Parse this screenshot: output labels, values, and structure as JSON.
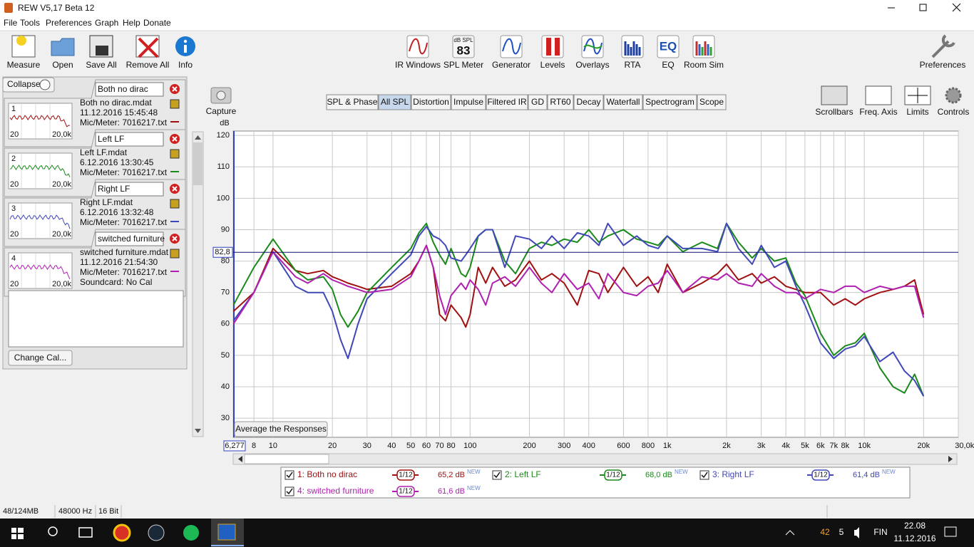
{
  "window": {
    "title": "REW V5,17 Beta 12"
  },
  "menu": [
    "File",
    "Tools",
    "Preferences",
    "Graph",
    "Help",
    "Donate"
  ],
  "toolbar": {
    "left": [
      "Measure",
      "Open",
      "Save All",
      "Remove All",
      "Info"
    ],
    "middle": [
      "IR Windows",
      "SPL Meter",
      "Generator",
      "Levels",
      "Overlays",
      "RTA",
      "EQ",
      "Room Sim"
    ],
    "spl_badge": [
      "dB SPL",
      "83"
    ],
    "eq_badge": "EQ",
    "right": "Preferences"
  },
  "panel": {
    "collapse": "Collapse",
    "measurements": [
      {
        "index": "1",
        "axis": [
          "20",
          "20,0k"
        ],
        "name": "Both no dirac",
        "file": "Both no dirac.mdat",
        "date": "11.12.2016 15:45:48",
        "meter": "Mic/Meter: 7016217.txt"
      },
      {
        "index": "2",
        "axis": [
          "20",
          "20,0k"
        ],
        "name": "Left LF",
        "file": "Left LF.mdat",
        "date": "6.12.2016 13:30:45",
        "meter": "Mic/Meter: 7016217.txt"
      },
      {
        "index": "3",
        "axis": [
          "20",
          "20,0k"
        ],
        "name": "Right LF",
        "file": "Right LF.mdat",
        "date": "6.12.2016 13:32:48",
        "meter": "Mic/Meter: 7016217.txt"
      },
      {
        "index": "4",
        "axis": [
          "20",
          "20,0k"
        ],
        "name": "switched furniture",
        "file": "switched furniture.mdat",
        "date": "11.12.2016 21:54:30",
        "meter": "Mic/Meter: 7016217.txt",
        "soundcard": "Soundcard: No Cal"
      }
    ],
    "change_cal": "Change Cal..."
  },
  "graph_toolbar": {
    "capture": "Capture",
    "tabs": [
      "SPL & Phase",
      "All SPL",
      "Distortion",
      "Impulse",
      "Filtered IR",
      "GD",
      "RT60",
      "Decay",
      "Waterfall",
      "Spectrogram",
      "Scope"
    ],
    "active_tab": 1,
    "tools": [
      "Scrollbars",
      "Freq. Axis",
      "Limits",
      "Controls"
    ]
  },
  "chart_data": {
    "type": "line",
    "y_label": "dB",
    "x_scale": "log",
    "grid": true,
    "xlim": [
      6.277,
      30000
    ],
    "ylim": [
      23.9,
      121.4
    ],
    "yticks": [
      30,
      40,
      50,
      60,
      70,
      80,
      90,
      100,
      110,
      120
    ],
    "xticks": [
      {
        "value": 6.277,
        "label": "6,277"
      },
      8,
      10,
      20,
      30,
      40,
      50,
      60,
      70,
      80,
      100,
      200,
      300,
      400,
      600,
      800,
      {
        "value": 1000,
        "label": "1k"
      },
      {
        "value": 2000,
        "label": "2k"
      },
      {
        "value": 3000,
        "label": "3k"
      },
      {
        "value": 4000,
        "label": "4k"
      },
      {
        "value": 5000,
        "label": "5k"
      },
      {
        "value": 6000,
        "label": "6k"
      },
      {
        "value": 7000,
        "label": "7k"
      },
      {
        "value": 8000,
        "label": "8k"
      },
      {
        "value": 10000,
        "label": "10k"
      },
      {
        "value": 20000,
        "label": "20k"
      },
      {
        "value": 30000,
        "label": "30,0k Hz"
      }
    ],
    "cursor": {
      "value": 82.8,
      "label": "82,8"
    },
    "button": "Average the Responses",
    "x": [
      6.3,
      8,
      10,
      13,
      15,
      18,
      20,
      22,
      24,
      27,
      30,
      40,
      50,
      55,
      60,
      65,
      70,
      75,
      80,
      90,
      95,
      100,
      110,
      120,
      130,
      150,
      170,
      200,
      230,
      260,
      300,
      350,
      400,
      450,
      500,
      600,
      700,
      800,
      900,
      1000,
      1200,
      1500,
      1800,
      2000,
      2300,
      2700,
      3000,
      3500,
      4000,
      4500,
      5000,
      6000,
      7000,
      8000,
      9000,
      10000,
      12000,
      14000,
      16000,
      18000,
      20000
    ],
    "series": [
      {
        "name": "1: Both no dirac",
        "color": "#a01010",
        "smoothing": "1/12",
        "level": "65,2 dB",
        "tag": "NEW",
        "values": [
          64,
          70,
          84,
          77,
          76,
          77,
          75,
          74,
          73,
          72,
          71,
          72,
          76,
          80,
          85,
          78,
          63,
          61,
          66,
          62,
          59,
          63,
          78,
          73,
          78,
          72,
          74,
          80,
          74,
          76,
          73,
          66,
          77,
          76,
          70,
          78,
          72,
          75,
          70,
          79,
          70,
          73,
          76,
          79,
          74,
          76,
          73,
          75,
          72,
          71,
          70,
          70,
          66,
          68,
          66,
          68,
          70,
          71,
          72,
          74,
          63
        ]
      },
      {
        "name": "2: Left LF",
        "color": "#1a8a1a",
        "smoothing": "1/12",
        "level": "68,0 dB",
        "tag": "NEW",
        "values": [
          66,
          78,
          87,
          77,
          74,
          75,
          71,
          63,
          59,
          64,
          70,
          78,
          84,
          89,
          92,
          86,
          82,
          79,
          84,
          76,
          75,
          78,
          88,
          90,
          90,
          80,
          76,
          84,
          86,
          85,
          87,
          86,
          90,
          86,
          88,
          90,
          87,
          86,
          85,
          88,
          83,
          86,
          84,
          92,
          86,
          81,
          84,
          80,
          81,
          73,
          69,
          57,
          50,
          53,
          54,
          57,
          46,
          40,
          38,
          44,
          37
        ]
      },
      {
        "name": "3: Right LF",
        "color": "#4048b8",
        "smoothing": "1/12",
        "level": "61,4 dB",
        "tag": "NEW",
        "values": [
          61,
          70,
          83,
          72,
          70,
          70,
          64,
          55,
          49,
          60,
          68,
          76,
          82,
          88,
          91,
          88,
          87,
          85,
          81,
          80,
          82,
          84,
          88,
          90,
          90,
          78,
          88,
          87,
          84,
          88,
          84,
          89,
          88,
          85,
          92,
          85,
          88,
          85,
          84,
          88,
          84,
          84,
          83,
          92,
          84,
          79,
          85,
          78,
          80,
          72,
          66,
          54,
          49,
          52,
          53,
          56,
          48,
          51,
          45,
          42,
          37
        ]
      },
      {
        "name": "4: switched furniture",
        "color": "#b020b0",
        "smoothing": "1/12",
        "level": "61,6 dB",
        "tag": "NEW",
        "values": [
          60,
          70,
          83,
          75,
          73,
          76,
          74,
          73,
          72,
          71,
          70,
          71,
          75,
          80,
          85,
          78,
          69,
          63,
          69,
          73,
          71,
          74,
          71,
          66,
          73,
          75,
          72,
          78,
          73,
          70,
          76,
          71,
          73,
          68,
          76,
          70,
          69,
          72,
          73,
          77,
          70,
          75,
          74,
          76,
          73,
          72,
          76,
          72,
          70,
          70,
          68,
          71,
          70,
          72,
          72,
          70,
          72,
          71,
          72,
          72,
          62
        ]
      }
    ]
  },
  "status": [
    "48/124MB",
    "48000 Hz",
    "16 Bit"
  ],
  "taskbar": {
    "tray": [
      "42",
      "5",
      "FIN"
    ],
    "time": "22.08",
    "date": "11.12.2016"
  }
}
